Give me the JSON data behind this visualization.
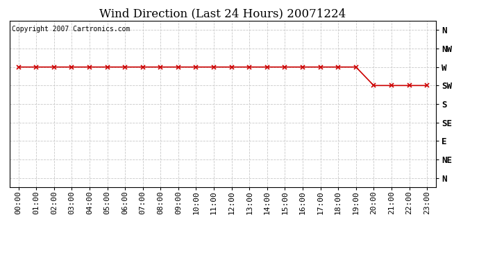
{
  "title": "Wind Direction (Last 24 Hours) 20071224",
  "copyright_text": "Copyright 2007 Cartronics.com",
  "x_labels": [
    "00:00",
    "01:00",
    "02:00",
    "03:00",
    "04:00",
    "05:00",
    "06:00",
    "07:00",
    "08:00",
    "09:00",
    "10:00",
    "11:00",
    "12:00",
    "13:00",
    "14:00",
    "15:00",
    "16:00",
    "17:00",
    "18:00",
    "19:00",
    "20:00",
    "21:00",
    "22:00",
    "23:00"
  ],
  "y_tick_positions": [
    8,
    7,
    6,
    5,
    4,
    3,
    2,
    1,
    0
  ],
  "y_tick_labels": [
    "N",
    "NW",
    "W",
    "SW",
    "S",
    "SE",
    "E",
    "NE",
    "N"
  ],
  "wind_data_hours": [
    0,
    1,
    2,
    3,
    4,
    5,
    6,
    7,
    8,
    9,
    10,
    11,
    12,
    13,
    14,
    15,
    16,
    17,
    18,
    19,
    20,
    21,
    22,
    23
  ],
  "wind_data_dirs": [
    6,
    6,
    6,
    6,
    6,
    6,
    6,
    6,
    6,
    6,
    6,
    6,
    6,
    6,
    6,
    6,
    6,
    6,
    6,
    6,
    5,
    5,
    5,
    5
  ],
  "line_color": "#cc0000",
  "marker": "x",
  "marker_size": 4,
  "marker_color": "#cc0000",
  "grid_color": "#c8c8c8",
  "bg_color": "#ffffff",
  "title_fontsize": 12,
  "copyright_fontsize": 7,
  "tick_fontsize": 8,
  "ytick_fontsize": 9,
  "figwidth": 6.9,
  "figheight": 3.75,
  "dpi": 100
}
